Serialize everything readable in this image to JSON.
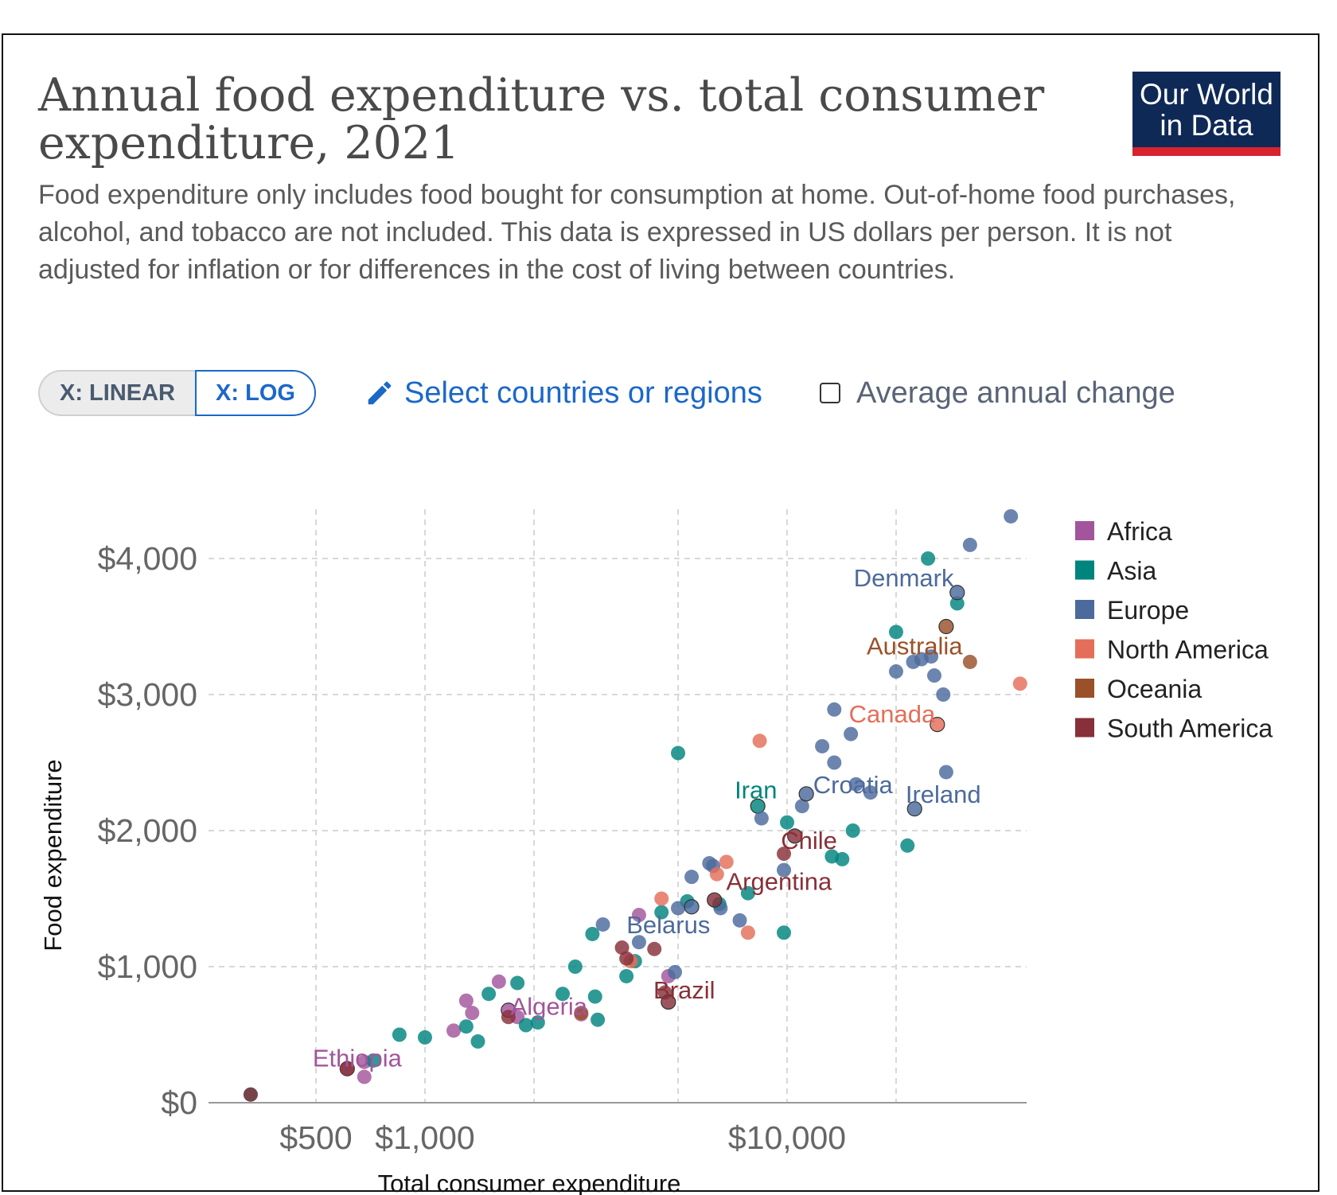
{
  "header": {
    "title": "Annual food expenditure vs. total consumer expenditure, 2021",
    "subtitle": "Food expenditure only includes food bought for consumption at home. Out-of-home food purchases, alcohol, and tobacco are not included. This data is expressed in US dollars per person. It is not adjusted for inflation or for differences in the cost of living between countries.",
    "logo_line1": "Our World",
    "logo_line2": "in Data"
  },
  "controls": {
    "x_linear_label": "X: LINEAR",
    "x_log_label": "X: LOG",
    "select_label": "Select countries or regions",
    "average_label": "Average annual change"
  },
  "colors": {
    "Africa": "#a2559c",
    "Asia": "#00847e",
    "Europe": "#4c6a9c",
    "North America": "#e56e5a",
    "Oceania": "#9a5129",
    "South America": "#883039",
    "accent": "#1b68c9",
    "logo_bg": "#0f2957",
    "logo_bar": "#d6232e"
  },
  "chart_data": {
    "type": "scatter",
    "title": "Annual food expenditure vs. total consumer expenditure, 2021",
    "xlabel": "Total consumer expenditure",
    "ylabel": "Food expenditure",
    "x_scale": "log",
    "xlim": [
      250,
      40000
    ],
    "ylim": [
      0,
      4300
    ],
    "x_ticks": [
      {
        "value": 500,
        "label": "$500"
      },
      {
        "value": 1000,
        "label": "$1,000"
      },
      {
        "value": 10000,
        "label": "$10,000"
      }
    ],
    "x_gridlines": [
      500,
      1000,
      2000,
      5000,
      10000,
      20000
    ],
    "y_ticks": [
      {
        "value": 0,
        "label": "$0"
      },
      {
        "value": 1000,
        "label": "$1,000"
      },
      {
        "value": 2000,
        "label": "$2,000"
      },
      {
        "value": 3000,
        "label": "$3,000"
      },
      {
        "value": 4000,
        "label": "$4,000"
      }
    ],
    "legend": [
      "Africa",
      "Asia",
      "Europe",
      "North America",
      "Oceania",
      "South America"
    ],
    "legend_position": "right",
    "labels": [
      {
        "text": "Denmark",
        "region": "Europe",
        "x": 21000,
        "y": 3860
      },
      {
        "text": "Australia",
        "region": "Oceania",
        "x": 22500,
        "y": 3360
      },
      {
        "text": "Canada",
        "region": "North America",
        "x": 19500,
        "y": 2860
      },
      {
        "text": "Iran",
        "region": "Asia",
        "x": 8200,
        "y": 2300
      },
      {
        "text": "Croatia",
        "region": "Europe",
        "x": 15200,
        "y": 2340
      },
      {
        "text": "Ireland",
        "region": "Europe",
        "x": 27000,
        "y": 2270
      },
      {
        "text": "Chile",
        "region": "South America",
        "x": 11500,
        "y": 1930
      },
      {
        "text": "Argentina",
        "region": "South America",
        "x": 9500,
        "y": 1630
      },
      {
        "text": "Belarus",
        "region": "Europe",
        "x": 4700,
        "y": 1310
      },
      {
        "text": "Brazil",
        "region": "South America",
        "x": 5200,
        "y": 830
      },
      {
        "text": "Algeria",
        "region": "Africa",
        "x": 2200,
        "y": 710
      },
      {
        "text": "Ethiopia",
        "region": "Africa",
        "x": 650,
        "y": 330
      }
    ],
    "points": [
      {
        "region": "Africa",
        "x": 610,
        "y": 250,
        "label": "Ethiopia"
      },
      {
        "region": "Africa",
        "x": 680,
        "y": 190
      },
      {
        "region": "Africa",
        "x": 680,
        "y": 300
      },
      {
        "region": "Africa",
        "x": 1200,
        "y": 530
      },
      {
        "region": "Africa",
        "x": 1300,
        "y": 750
      },
      {
        "region": "Africa",
        "x": 1350,
        "y": 660
      },
      {
        "region": "Africa",
        "x": 1600,
        "y": 890
      },
      {
        "region": "Africa",
        "x": 1700,
        "y": 680,
        "label": "Algeria"
      },
      {
        "region": "Africa",
        "x": 1800,
        "y": 630
      },
      {
        "region": "Africa",
        "x": 2700,
        "y": 650
      },
      {
        "region": "Africa",
        "x": 3900,
        "y": 1380
      },
      {
        "region": "Africa",
        "x": 4700,
        "y": 930
      },
      {
        "region": "Asia",
        "x": 330,
        "y": 60
      },
      {
        "region": "Asia",
        "x": 720,
        "y": 310
      },
      {
        "region": "Asia",
        "x": 850,
        "y": 500
      },
      {
        "region": "Asia",
        "x": 1000,
        "y": 480
      },
      {
        "region": "Asia",
        "x": 1300,
        "y": 560
      },
      {
        "region": "Asia",
        "x": 1400,
        "y": 450
      },
      {
        "region": "Asia",
        "x": 1500,
        "y": 800
      },
      {
        "region": "Asia",
        "x": 1800,
        "y": 880
      },
      {
        "region": "Asia",
        "x": 1900,
        "y": 570
      },
      {
        "region": "Asia",
        "x": 2050,
        "y": 590
      },
      {
        "region": "Asia",
        "x": 2400,
        "y": 800
      },
      {
        "region": "Asia",
        "x": 2600,
        "y": 1000
      },
      {
        "region": "Asia",
        "x": 2900,
        "y": 1240
      },
      {
        "region": "Asia",
        "x": 2950,
        "y": 780
      },
      {
        "region": "Asia",
        "x": 3000,
        "y": 610
      },
      {
        "region": "Asia",
        "x": 3600,
        "y": 930
      },
      {
        "region": "Asia",
        "x": 3800,
        "y": 1040
      },
      {
        "region": "Asia",
        "x": 4500,
        "y": 1400
      },
      {
        "region": "Asia",
        "x": 5000,
        "y": 2570
      },
      {
        "region": "Asia",
        "x": 5300,
        "y": 1480
      },
      {
        "region": "Asia",
        "x": 6500,
        "y": 1460
      },
      {
        "region": "Asia",
        "x": 7800,
        "y": 1540
      },
      {
        "region": "Asia",
        "x": 8300,
        "y": 2180,
        "label": "Iran"
      },
      {
        "region": "Asia",
        "x": 9800,
        "y": 1250
      },
      {
        "region": "Asia",
        "x": 10000,
        "y": 2060
      },
      {
        "region": "Asia",
        "x": 13300,
        "y": 1810
      },
      {
        "region": "Asia",
        "x": 14200,
        "y": 1790
      },
      {
        "region": "Asia",
        "x": 15200,
        "y": 2000
      },
      {
        "region": "Asia",
        "x": 20000,
        "y": 3460
      },
      {
        "region": "Asia",
        "x": 21500,
        "y": 1890
      },
      {
        "region": "Asia",
        "x": 24500,
        "y": 4000
      },
      {
        "region": "Asia",
        "x": 29500,
        "y": 3670
      },
      {
        "region": "Europe",
        "x": 3100,
        "y": 1310
      },
      {
        "region": "Europe",
        "x": 3900,
        "y": 1180
      },
      {
        "region": "Europe",
        "x": 4900,
        "y": 960
      },
      {
        "region": "Europe",
        "x": 5000,
        "y": 1430
      },
      {
        "region": "Europe",
        "x": 5450,
        "y": 1660
      },
      {
        "region": "Europe",
        "x": 5450,
        "y": 1440,
        "label": "Belarus"
      },
      {
        "region": "Europe",
        "x": 6100,
        "y": 1760
      },
      {
        "region": "Europe",
        "x": 6250,
        "y": 1740
      },
      {
        "region": "Europe",
        "x": 6550,
        "y": 1430
      },
      {
        "region": "Europe",
        "x": 7400,
        "y": 1340
      },
      {
        "region": "Europe",
        "x": 8500,
        "y": 2090
      },
      {
        "region": "Europe",
        "x": 9800,
        "y": 1710
      },
      {
        "region": "Europe",
        "x": 11000,
        "y": 2180
      },
      {
        "region": "Europe",
        "x": 11300,
        "y": 2270,
        "label": "Croatia"
      },
      {
        "region": "Europe",
        "x": 12500,
        "y": 2620
      },
      {
        "region": "Europe",
        "x": 13500,
        "y": 2890
      },
      {
        "region": "Europe",
        "x": 13500,
        "y": 2500
      },
      {
        "region": "Europe",
        "x": 15000,
        "y": 2710
      },
      {
        "region": "Europe",
        "x": 15500,
        "y": 2340
      },
      {
        "region": "Europe",
        "x": 17000,
        "y": 2280
      },
      {
        "region": "Europe",
        "x": 20000,
        "y": 3170
      },
      {
        "region": "Europe",
        "x": 22300,
        "y": 3240
      },
      {
        "region": "Europe",
        "x": 23500,
        "y": 3260
      },
      {
        "region": "Europe",
        "x": 25000,
        "y": 3280
      },
      {
        "region": "Europe",
        "x": 22500,
        "y": 2160,
        "label": "Ireland"
      },
      {
        "region": "Europe",
        "x": 25500,
        "y": 3140
      },
      {
        "region": "Europe",
        "x": 27000,
        "y": 3000
      },
      {
        "region": "Europe",
        "x": 27500,
        "y": 2430
      },
      {
        "region": "Europe",
        "x": 29500,
        "y": 3750,
        "label": "Denmark"
      },
      {
        "region": "Europe",
        "x": 32000,
        "y": 4100
      },
      {
        "region": "Europe",
        "x": 41500,
        "y": 4310
      },
      {
        "region": "North America",
        "x": 3700,
        "y": 1040
      },
      {
        "region": "North America",
        "x": 4500,
        "y": 1500
      },
      {
        "region": "North America",
        "x": 6400,
        "y": 1680
      },
      {
        "region": "North America",
        "x": 6800,
        "y": 1770
      },
      {
        "region": "North America",
        "x": 7800,
        "y": 1250
      },
      {
        "region": "North America",
        "x": 8400,
        "y": 2660
      },
      {
        "region": "North America",
        "x": 26000,
        "y": 2780,
        "label": "Canada"
      },
      {
        "region": "North America",
        "x": 44000,
        "y": 3080
      },
      {
        "region": "Oceania",
        "x": 2700,
        "y": 660
      },
      {
        "region": "Oceania",
        "x": 27500,
        "y": 3500,
        "label": "Australia"
      },
      {
        "region": "Oceania",
        "x": 32000,
        "y": 3240
      },
      {
        "region": "South America",
        "x": 330,
        "y": 60
      },
      {
        "region": "South America",
        "x": 610,
        "y": 250
      },
      {
        "region": "South America",
        "x": 1700,
        "y": 630
      },
      {
        "region": "South America",
        "x": 3500,
        "y": 1140
      },
      {
        "region": "South America",
        "x": 3600,
        "y": 1060
      },
      {
        "region": "South America",
        "x": 4300,
        "y": 1130
      },
      {
        "region": "South America",
        "x": 4600,
        "y": 810
      },
      {
        "region": "South America",
        "x": 4700,
        "y": 740,
        "label": "Brazil"
      },
      {
        "region": "South America",
        "x": 6300,
        "y": 1490,
        "label": "Argentina"
      },
      {
        "region": "South America",
        "x": 9800,
        "y": 1830
      },
      {
        "region": "South America",
        "x": 10500,
        "y": 1960,
        "label": "Chile"
      }
    ]
  },
  "axes": {
    "xlabel": "Total consumer expenditure",
    "ylabel": "Food expenditure"
  }
}
